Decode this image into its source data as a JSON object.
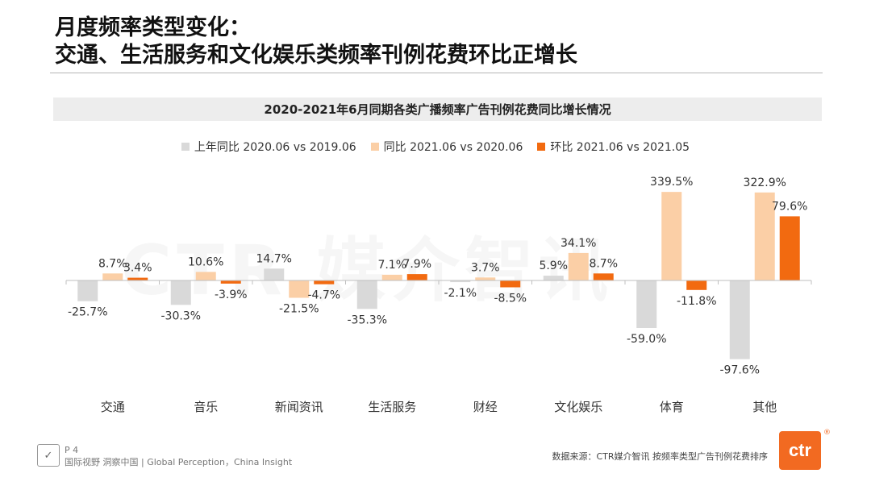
{
  "title": {
    "line1": "月度频率类型变化：",
    "line2": "交通、生活服务和文化娱乐类频率刊例花费环比正增长"
  },
  "watermark": "CTR 媒介智讯",
  "chart_data": {
    "type": "bar",
    "title": "2020-2021年6月同期各类广播频率广告刊例花费同比增长情况",
    "categories": [
      "交通",
      "音乐",
      "新闻资讯",
      "生活服务",
      "财经",
      "文化娱乐",
      "体育",
      "其他"
    ],
    "series": [
      {
        "name": "上年同比 2020.06 vs 2019.06",
        "color": "#d9d9d9",
        "values": [
          -25.7,
          -30.3,
          14.7,
          -35.3,
          -2.1,
          5.9,
          -59.0,
          -97.6
        ]
      },
      {
        "name": "同比 2021.06 vs 2020.06",
        "color": "#fbcfa6",
        "values": [
          8.7,
          10.6,
          -21.5,
          7.1,
          3.7,
          34.1,
          339.5,
          322.9
        ]
      },
      {
        "name": "环比 2021.06 vs 2021.05",
        "color": "#f26a10",
        "values": [
          3.4,
          -3.9,
          -4.7,
          7.9,
          -8.5,
          8.7,
          -11.8,
          79.6
        ]
      }
    ],
    "labels": [
      [
        "-25.7%",
        "-30.3%",
        "14.7%",
        "-35.3%",
        "-2.1%",
        "5.9%",
        "-59.0%",
        "-97.6%"
      ],
      [
        "8.7%",
        "10.6%",
        "-21.5%",
        "7.1%",
        "3.7%",
        "34.1%",
        "339.5%",
        "322.9%"
      ],
      [
        "3.4%",
        "-3.9%",
        "-4.7%",
        "7.9%",
        "-8.5%",
        "8.7%",
        "-11.8%",
        "79.6%"
      ]
    ],
    "legend_position": "top-center",
    "grid": false
  },
  "footer": {
    "page": "P 4",
    "tagline": "国际视野  洞察中国 | Global Perception，China Insight",
    "source": "数据来源：CTR媒介智讯   按频率类型广告刊例花费排序",
    "logo_text": "ctr",
    "badge_icon": "certification-badge-icon"
  }
}
